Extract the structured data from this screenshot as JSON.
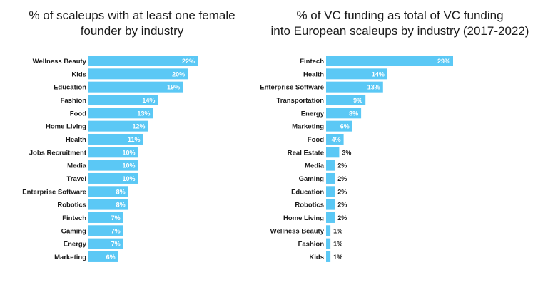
{
  "colors": {
    "bar": "#5bc8f5",
    "text": "#1a1a1a",
    "label_inside": "#ffffff"
  },
  "chart_data": [
    {
      "type": "bar",
      "orientation": "horizontal",
      "title_lines": [
        "% of scaleups with at least one female",
        "founder by industry"
      ],
      "categories": [
        "Wellness Beauty",
        "Kids",
        "Education",
        "Fashion",
        "Food",
        "Home Living",
        "Health",
        "Jobs Recruitment",
        "Media",
        "Travel",
        "Enterprise Software",
        "Robotics",
        "Fintech",
        "Gaming",
        "Energy",
        "Marketing"
      ],
      "values": [
        22,
        20,
        19,
        14,
        13,
        12,
        11,
        10,
        10,
        10,
        8,
        8,
        7,
        7,
        7,
        6
      ],
      "value_suffix": "%",
      "xlim": [
        0,
        22
      ]
    },
    {
      "type": "bar",
      "orientation": "horizontal",
      "title_lines": [
        "% of VC funding as total of VC funding",
        "into European scaleups by industry  (2017-2022)"
      ],
      "categories": [
        "Fintech",
        "Health",
        "Enterprise Software",
        "Transportation",
        "Energy",
        "Marketing",
        "Food",
        "Real Estate",
        "Media",
        "Gaming",
        "Education",
        "Robotics",
        "Home Living",
        "Wellness Beauty",
        "Fashion",
        "Kids"
      ],
      "values": [
        29,
        14,
        13,
        9,
        8,
        6,
        4,
        3,
        2,
        2,
        2,
        2,
        2,
        1,
        1,
        1
      ],
      "value_suffix": "%",
      "xlim": [
        0,
        29
      ]
    }
  ]
}
